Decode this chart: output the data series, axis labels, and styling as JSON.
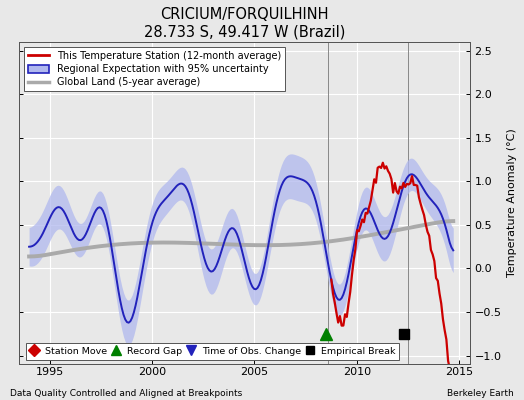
{
  "title": "CRICIUM/FORQUILHINH",
  "subtitle": "28.733 S, 49.417 W (Brazil)",
  "ylabel": "Temperature Anomaly (°C)",
  "xlabel_left": "Data Quality Controlled and Aligned at Breakpoints",
  "xlabel_right": "Berkeley Earth",
  "ylim": [
    -1.1,
    2.6
  ],
  "xlim": [
    1993.5,
    2015.5
  ],
  "yticks": [
    -1,
    -0.5,
    0,
    0.5,
    1,
    1.5,
    2,
    2.5
  ],
  "xticks": [
    1995,
    2000,
    2005,
    2010,
    2015
  ],
  "bg_color": "#e8e8e8",
  "plot_bg_color": "#e8e8e8",
  "grid_color": "white",
  "red_line_color": "#cc0000",
  "blue_line_color": "#2222bb",
  "blue_fill_color": "#b0b8ee",
  "gray_line_color": "#aaaaaa",
  "record_gap_x": 2008.5,
  "record_gap_y": -0.75,
  "empirical_break_x": 2012.3,
  "empirical_break_y": -0.75,
  "vline1_x": 2008.6,
  "vline2_x": 2012.5
}
